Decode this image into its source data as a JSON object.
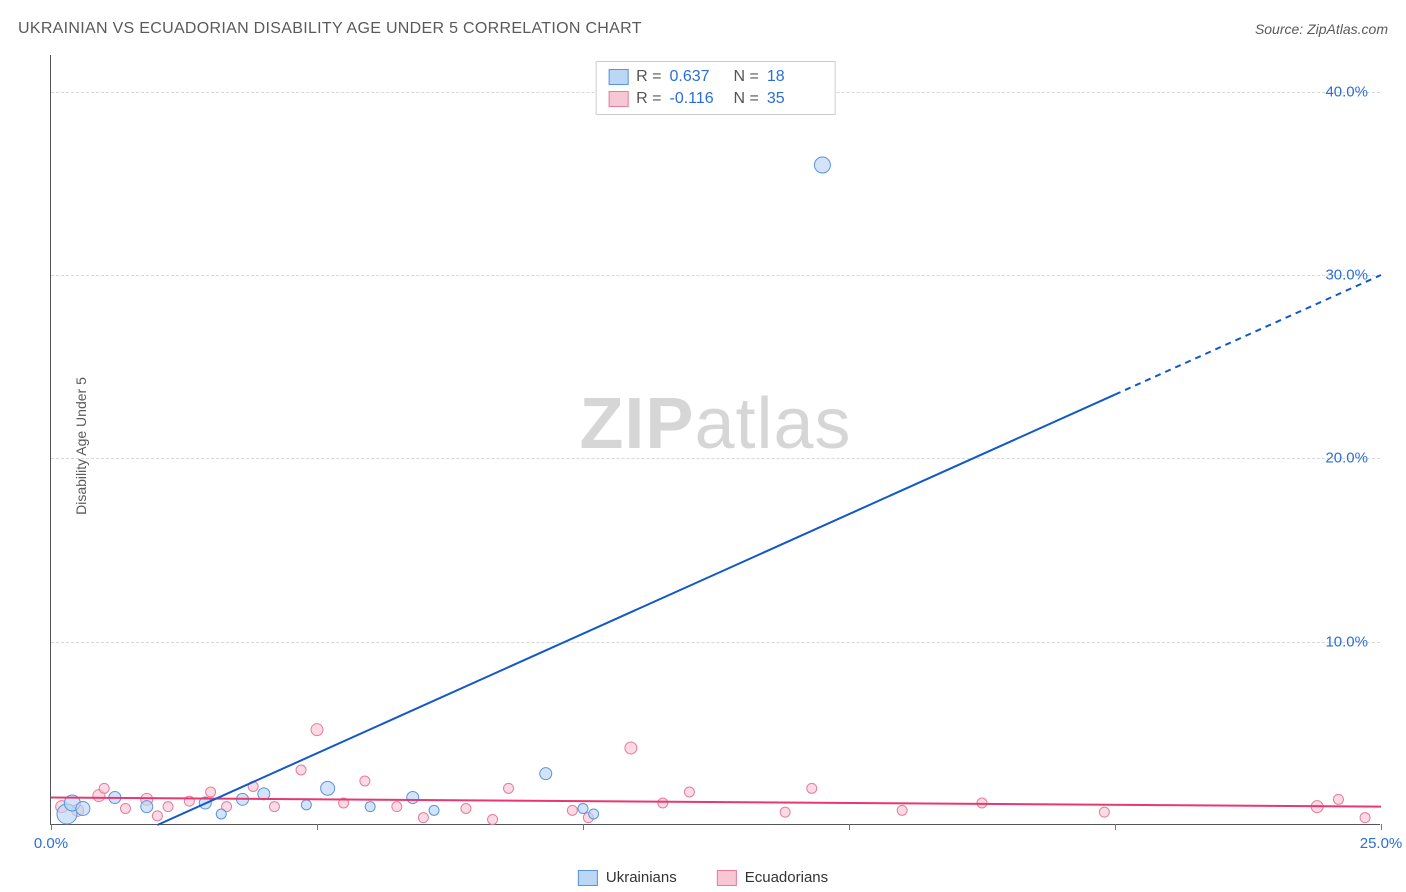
{
  "title": "UKRAINIAN VS ECUADORIAN DISABILITY AGE UNDER 5 CORRELATION CHART",
  "source": "Source: ZipAtlas.com",
  "ylabel": "Disability Age Under 5",
  "watermark": {
    "bold": "ZIP",
    "rest": "atlas"
  },
  "chart": {
    "type": "scatter",
    "x_range": [
      0,
      25
    ],
    "y_range": [
      0,
      42
    ],
    "x_ticks": [
      0,
      5,
      10,
      15,
      20,
      25
    ],
    "x_tick_labels": {
      "0": "0.0%",
      "25": "25.0%"
    },
    "y_grid": [
      10,
      20,
      30,
      40
    ],
    "y_tick_labels": {
      "10": "10.0%",
      "20": "20.0%",
      "30": "30.0%",
      "40": "40.0%"
    },
    "xlabel_color": "#2a6fd6",
    "ylabel_color": "#2a6fd6",
    "grid_color": "#d8d8d8",
    "background_color": "#ffffff",
    "series": {
      "ukrainians": {
        "label": "Ukrainians",
        "fill": "#bcd6f5",
        "stroke": "#5a94db",
        "r_value": "0.637",
        "n_value": "18",
        "trend": {
          "x1": 2.0,
          "y1": 0.0,
          "x2": 25.0,
          "y2": 30.0,
          "solid_until_x": 20.0,
          "color": "#1358c7",
          "width": 2
        },
        "points": [
          {
            "x": 0.3,
            "y": 0.6,
            "r": 10
          },
          {
            "x": 0.4,
            "y": 1.2,
            "r": 8
          },
          {
            "x": 0.6,
            "y": 0.9,
            "r": 7
          },
          {
            "x": 1.2,
            "y": 1.5,
            "r": 6
          },
          {
            "x": 1.8,
            "y": 1.0,
            "r": 6
          },
          {
            "x": 2.9,
            "y": 1.2,
            "r": 6
          },
          {
            "x": 3.2,
            "y": 0.6,
            "r": 5
          },
          {
            "x": 3.6,
            "y": 1.4,
            "r": 6
          },
          {
            "x": 4.0,
            "y": 1.7,
            "r": 6
          },
          {
            "x": 5.2,
            "y": 2.0,
            "r": 7
          },
          {
            "x": 6.0,
            "y": 1.0,
            "r": 5
          },
          {
            "x": 6.8,
            "y": 1.5,
            "r": 6
          },
          {
            "x": 7.2,
            "y": 0.8,
            "r": 5
          },
          {
            "x": 9.3,
            "y": 2.8,
            "r": 6
          },
          {
            "x": 10.0,
            "y": 0.9,
            "r": 5
          },
          {
            "x": 10.2,
            "y": 0.6,
            "r": 5
          },
          {
            "x": 14.5,
            "y": 36.0,
            "r": 8
          },
          {
            "x": 4.8,
            "y": 1.1,
            "r": 5
          }
        ]
      },
      "ecuadorians": {
        "label": "Ecuadorians",
        "fill": "#f7c8d4",
        "stroke": "#e77ba0",
        "r_value": "-0.116",
        "n_value": "35",
        "trend": {
          "x1": 0.0,
          "y1": 1.5,
          "x2": 25.0,
          "y2": 1.0,
          "color": "#e7396f",
          "width": 2
        },
        "points": [
          {
            "x": 0.2,
            "y": 1.0,
            "r": 6
          },
          {
            "x": 0.5,
            "y": 0.8,
            "r": 6
          },
          {
            "x": 0.9,
            "y": 1.6,
            "r": 6
          },
          {
            "x": 1.0,
            "y": 2.0,
            "r": 5
          },
          {
            "x": 1.4,
            "y": 0.9,
            "r": 5
          },
          {
            "x": 1.8,
            "y": 1.4,
            "r": 6
          },
          {
            "x": 2.2,
            "y": 1.0,
            "r": 5
          },
          {
            "x": 2.6,
            "y": 1.3,
            "r": 5
          },
          {
            "x": 3.0,
            "y": 1.8,
            "r": 5
          },
          {
            "x": 3.3,
            "y": 1.0,
            "r": 5
          },
          {
            "x": 3.8,
            "y": 2.1,
            "r": 5
          },
          {
            "x": 4.2,
            "y": 1.0,
            "r": 5
          },
          {
            "x": 4.7,
            "y": 3.0,
            "r": 5
          },
          {
            "x": 5.0,
            "y": 5.2,
            "r": 6
          },
          {
            "x": 5.5,
            "y": 1.2,
            "r": 5
          },
          {
            "x": 5.9,
            "y": 2.4,
            "r": 5
          },
          {
            "x": 6.5,
            "y": 1.0,
            "r": 5
          },
          {
            "x": 7.0,
            "y": 0.4,
            "r": 5
          },
          {
            "x": 7.8,
            "y": 0.9,
            "r": 5
          },
          {
            "x": 8.3,
            "y": 0.3,
            "r": 5
          },
          {
            "x": 8.6,
            "y": 2.0,
            "r": 5
          },
          {
            "x": 9.8,
            "y": 0.8,
            "r": 5
          },
          {
            "x": 10.1,
            "y": 0.4,
            "r": 5
          },
          {
            "x": 10.9,
            "y": 4.2,
            "r": 6
          },
          {
            "x": 11.5,
            "y": 1.2,
            "r": 5
          },
          {
            "x": 12.0,
            "y": 1.8,
            "r": 5
          },
          {
            "x": 13.8,
            "y": 0.7,
            "r": 5
          },
          {
            "x": 14.3,
            "y": 2.0,
            "r": 5
          },
          {
            "x": 16.0,
            "y": 0.8,
            "r": 5
          },
          {
            "x": 17.5,
            "y": 1.2,
            "r": 5
          },
          {
            "x": 19.8,
            "y": 0.7,
            "r": 5
          },
          {
            "x": 23.8,
            "y": 1.0,
            "r": 6
          },
          {
            "x": 24.2,
            "y": 1.4,
            "r": 5
          },
          {
            "x": 24.7,
            "y": 0.4,
            "r": 5
          },
          {
            "x": 2.0,
            "y": 0.5,
            "r": 5
          }
        ]
      }
    }
  },
  "stats_box": {
    "r_label": "R  =",
    "n_label": "N  ="
  }
}
